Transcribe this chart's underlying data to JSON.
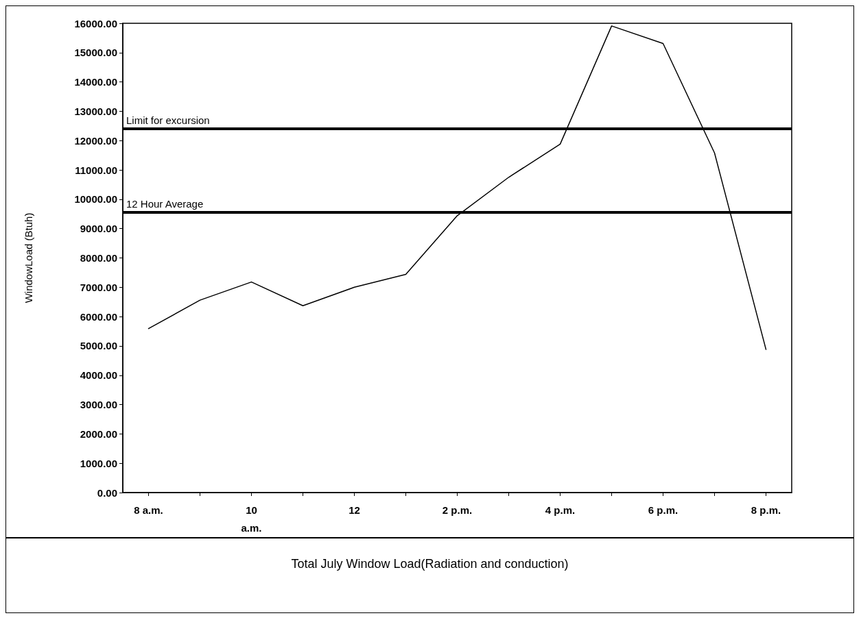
{
  "chart_data": {
    "type": "line",
    "title": "Total July Window Load(Radiation and conduction)",
    "ylabel": "WindowLoad (Btuh)",
    "categories": [
      "8 a.m.",
      null,
      "10\na.m.",
      null,
      "12",
      null,
      "2 p.m.",
      null,
      "4 p.m.",
      null,
      "6 p.m.",
      null,
      "8 p.m."
    ],
    "values": [
      5590,
      6560,
      7180,
      6370,
      7000,
      7440,
      9440,
      10750,
      11880,
      15910,
      15310,
      11580,
      4880
    ],
    "color": "#000000",
    "ylim": [
      0,
      16000
    ],
    "yticks": [
      {
        "value": 0,
        "label": "0.00"
      },
      {
        "value": 1000,
        "label": "1000.00"
      },
      {
        "value": 2000,
        "label": "2000.00"
      },
      {
        "value": 3000,
        "label": "3000.00"
      },
      {
        "value": 4000,
        "label": "4000.00"
      },
      {
        "value": 5000,
        "label": "5000.00"
      },
      {
        "value": 6000,
        "label": "6000.00"
      },
      {
        "value": 7000,
        "label": "7000.00"
      },
      {
        "value": 8000,
        "label": "8000.00"
      },
      {
        "value": 9000,
        "label": "9000.00"
      },
      {
        "value": 10000,
        "label": "10000.00"
      },
      {
        "value": 11000,
        "label": "11000.00"
      },
      {
        "value": 12000,
        "label": "12000.00"
      },
      {
        "value": 13000,
        "label": "13000.00"
      },
      {
        "value": 14000,
        "label": "14000.00"
      },
      {
        "value": 15000,
        "label": "15000.00"
      },
      {
        "value": 16000,
        "label": "16000.00"
      }
    ],
    "ref_lines": [
      {
        "axis": "y",
        "value": 12400,
        "label": "Limit for excursion",
        "color": "#000000"
      },
      {
        "axis": "y",
        "value": 9550,
        "label": "12 Hour Average",
        "color": "#000000"
      }
    ],
    "grid": false,
    "marker": "none",
    "line_style": "solid"
  }
}
